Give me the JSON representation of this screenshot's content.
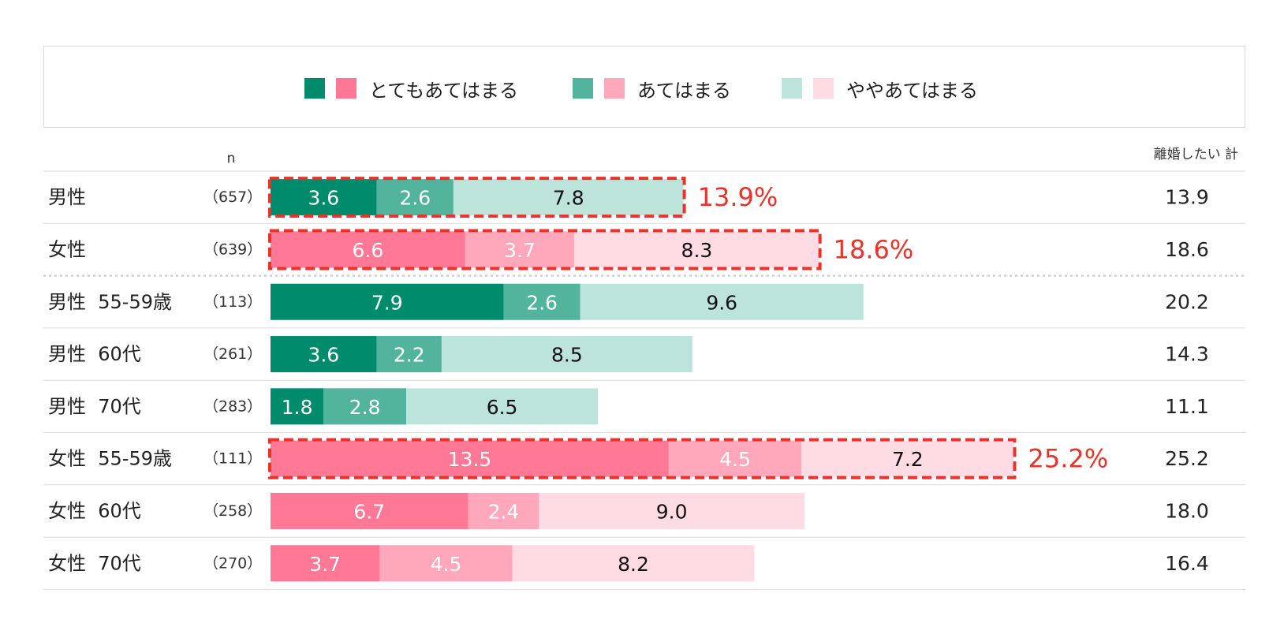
{
  "legend": [
    {
      "label": "とてもあてはまる",
      "male_color": "#008c6c",
      "female_color": "#ff7896"
    },
    {
      "label": "あてはまる",
      "male_color": "#52b49c",
      "female_color": "#ffa8bc"
    },
    {
      "label": "ややあてはまる",
      "male_color": "#bde4db",
      "female_color": "#ffdbe3"
    }
  ],
  "headers": {
    "n": "n",
    "total": "離婚したい 計"
  },
  "chart_data": {
    "type": "bar",
    "orientation": "horizontal",
    "stacked": true,
    "xlim": [
      0,
      33
    ],
    "series_names": [
      "とてもあてはまる",
      "あてはまる",
      "ややあてはまる"
    ],
    "rows": [
      {
        "label": "男性",
        "n": "（657）",
        "gender": "male",
        "values": [
          3.6,
          2.6,
          7.8
        ],
        "total": "13.9",
        "highlight": "13.9%"
      },
      {
        "label": "女性",
        "n": "（639）",
        "gender": "female",
        "values": [
          6.6,
          3.7,
          8.3
        ],
        "total": "18.6",
        "highlight": "18.6%"
      },
      {
        "label": "男性  55-59歳",
        "n": "（113）",
        "gender": "male",
        "values": [
          7.9,
          2.6,
          9.6
        ],
        "total": "20.2"
      },
      {
        "label": "男性  60代",
        "n": "（261）",
        "gender": "male",
        "values": [
          3.6,
          2.2,
          8.5
        ],
        "total": "14.3"
      },
      {
        "label": "男性  70代",
        "n": "（283）",
        "gender": "male",
        "values": [
          1.8,
          2.8,
          6.5
        ],
        "total": "11.1"
      },
      {
        "label": "女性  55-59歳",
        "n": "（111）",
        "gender": "female",
        "values": [
          13.5,
          4.5,
          7.2
        ],
        "total": "25.2",
        "highlight": "25.2%"
      },
      {
        "label": "女性  60代",
        "n": "（258）",
        "gender": "female",
        "values": [
          6.7,
          2.4,
          9.0
        ],
        "total": "18.0"
      },
      {
        "label": "女性  70代",
        "n": "（270）",
        "gender": "female",
        "values": [
          3.7,
          4.5,
          8.2
        ],
        "total": "16.4"
      }
    ],
    "colors": {
      "male": [
        "#008c6c",
        "#52b49c",
        "#bde4db"
      ],
      "female": [
        "#ff7896",
        "#ffa8bc",
        "#ffdbe3"
      ],
      "highlight": "#e8332a"
    }
  }
}
